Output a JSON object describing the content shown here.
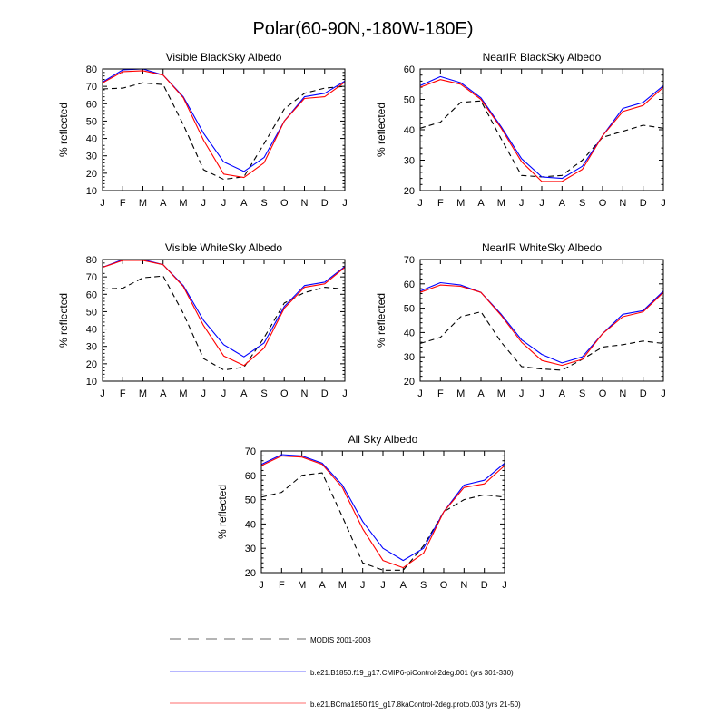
{
  "title": "Polar(60-90N,-180W-180E)",
  "colors": {
    "modis": "#000000",
    "blue": "#0000ff",
    "red": "#ff0000"
  },
  "legend": [
    {
      "label": "MODIS 2001-2003",
      "style": "dashed",
      "color": "#000000"
    },
    {
      "label": "b.e21.B1850.f19_g17.CMIP6-piControl-2deg.001 (yrs 301-330)",
      "style": "solid",
      "color": "#0000ff"
    },
    {
      "label": "b.e21.BCma1850.f19_g17.8kaControl-2deg.proto.003 (yrs 21-50)",
      "style": "solid",
      "color": "#ff0000"
    }
  ],
  "chart_data": [
    {
      "type": "line",
      "title": "Visible BlackSky Albedo",
      "ylabel": "% reflected",
      "categories": [
        "J",
        "F",
        "M",
        "A",
        "M",
        "J",
        "J",
        "A",
        "S",
        "O",
        "N",
        "D",
        "J"
      ],
      "ylim": [
        10,
        80
      ],
      "yticks": [
        10,
        20,
        30,
        40,
        50,
        60,
        70,
        80
      ],
      "series": [
        {
          "name": "MODIS 2001-2003",
          "values": [
            68.5,
            69,
            72,
            71,
            48,
            22,
            16.5,
            18,
            37,
            57,
            66,
            69,
            70
          ]
        },
        {
          "name": "b.e21.B1850.f19_g17.CMIP6-piControl-2deg.001 (yrs 301-330)",
          "values": [
            72.5,
            79.5,
            80,
            76.5,
            64,
            43,
            26.5,
            21,
            29,
            50,
            64,
            66,
            73
          ]
        },
        {
          "name": "b.e21.BCma1850.f19_g17.8kaControl-2deg.proto.003 (yrs 21-50)",
          "values": [
            72,
            78.5,
            79,
            76.5,
            63.5,
            39,
            19.5,
            17.5,
            26,
            50,
            63,
            64,
            72.5
          ]
        }
      ]
    },
    {
      "type": "line",
      "title": "NearIR BlackSky Albedo",
      "ylabel": "% reflected",
      "categories": [
        "J",
        "F",
        "M",
        "A",
        "M",
        "J",
        "J",
        "A",
        "S",
        "O",
        "N",
        "D",
        "J"
      ],
      "ylim": [
        20,
        60
      ],
      "yticks": [
        20,
        30,
        40,
        50,
        60
      ],
      "series": [
        {
          "name": "MODIS 2001-2003",
          "values": [
            40.5,
            42.5,
            49,
            49.5,
            37,
            25,
            24.5,
            25,
            30,
            37.5,
            39.5,
            41.5,
            40.5
          ]
        },
        {
          "name": "b.e21.B1850.f19_g17.CMIP6-piControl-2deg.001 (yrs 301-330)",
          "values": [
            54.5,
            57.5,
            55.5,
            50.5,
            41,
            30.5,
            24.5,
            24,
            28,
            38,
            47,
            49,
            54.5
          ]
        },
        {
          "name": "b.e21.BCma1850.f19_g17.8kaControl-2deg.proto.003 (yrs 21-50)",
          "values": [
            54,
            56.5,
            55,
            50,
            40.5,
            29.5,
            23,
            23,
            27,
            38,
            46,
            48,
            54
          ]
        }
      ]
    },
    {
      "type": "line",
      "title": "Visible WhiteSky Albedo",
      "ylabel": "% reflected",
      "categories": [
        "J",
        "F",
        "M",
        "A",
        "M",
        "J",
        "J",
        "A",
        "S",
        "O",
        "N",
        "D",
        "J"
      ],
      "ylim": [
        10,
        80
      ],
      "yticks": [
        10,
        20,
        30,
        40,
        50,
        60,
        70,
        80
      ],
      "series": [
        {
          "name": "MODIS 2001-2003",
          "values": [
            63,
            63.5,
            69.5,
            70.5,
            49,
            23,
            16.5,
            18,
            35,
            55,
            61,
            64,
            63
          ]
        },
        {
          "name": "b.e21.B1850.f19_g17.CMIP6-piControl-2deg.001 (yrs 301-330)",
          "values": [
            75.5,
            80,
            80,
            77,
            65,
            45,
            31,
            24,
            32,
            53,
            65,
            67,
            76
          ]
        },
        {
          "name": "b.e21.BCma1850.f19_g17.8kaControl-2deg.proto.003 (yrs 21-50)",
          "values": [
            75.5,
            79.5,
            79.5,
            77,
            64.5,
            42,
            24.5,
            19,
            29,
            52,
            64,
            66,
            75.5
          ]
        }
      ]
    },
    {
      "type": "line",
      "title": "NearIR WhiteSky Albedo",
      "ylabel": "% reflected",
      "categories": [
        "J",
        "F",
        "M",
        "A",
        "M",
        "J",
        "J",
        "A",
        "S",
        "O",
        "N",
        "D",
        "J"
      ],
      "ylim": [
        20,
        70
      ],
      "yticks": [
        20,
        30,
        40,
        50,
        60,
        70
      ],
      "series": [
        {
          "name": "MODIS 2001-2003",
          "values": [
            35.5,
            38,
            46.5,
            48.5,
            36,
            26,
            25,
            24.5,
            29,
            34,
            35,
            36.5,
            35.5
          ]
        },
        {
          "name": "b.e21.B1850.f19_g17.CMIP6-piControl-2deg.001 (yrs 301-330)",
          "values": [
            57,
            60.5,
            59.5,
            56.5,
            47.5,
            37,
            31,
            27.5,
            30,
            39.5,
            47.5,
            49,
            57
          ]
        },
        {
          "name": "b.e21.BCma1850.f19_g17.8kaControl-2deg.proto.003 (yrs 21-50)",
          "values": [
            56.5,
            59.5,
            59,
            56.5,
            47,
            36,
            28.5,
            26.5,
            29,
            39.5,
            46.5,
            48.5,
            56.5
          ]
        }
      ]
    },
    {
      "type": "line",
      "title": "All Sky Albedo",
      "ylabel": "% reflected",
      "categories": [
        "J",
        "F",
        "M",
        "A",
        "M",
        "J",
        "J",
        "A",
        "S",
        "O",
        "N",
        "D",
        "J"
      ],
      "ylim": [
        20,
        70
      ],
      "yticks": [
        20,
        30,
        40,
        50,
        60,
        70
      ],
      "series": [
        {
          "name": "MODIS 2001-2003",
          "values": [
            51,
            53,
            60,
            61,
            43,
            24,
            21,
            21,
            31,
            45,
            50,
            52,
            51
          ]
        },
        {
          "name": "b.e21.B1850.f19_g17.CMIP6-piControl-2deg.001 (yrs 301-330)",
          "values": [
            64.5,
            68.5,
            68,
            65,
            56,
            41,
            30,
            25,
            30,
            45,
            56,
            58,
            65
          ]
        },
        {
          "name": "b.e21.BCma1850.f19_g17.8kaControl-2deg.proto.003 (yrs 21-50)",
          "values": [
            64,
            68,
            67.5,
            64.5,
            55,
            38,
            25,
            22,
            28,
            45,
            55,
            56.5,
            64
          ]
        }
      ]
    }
  ]
}
